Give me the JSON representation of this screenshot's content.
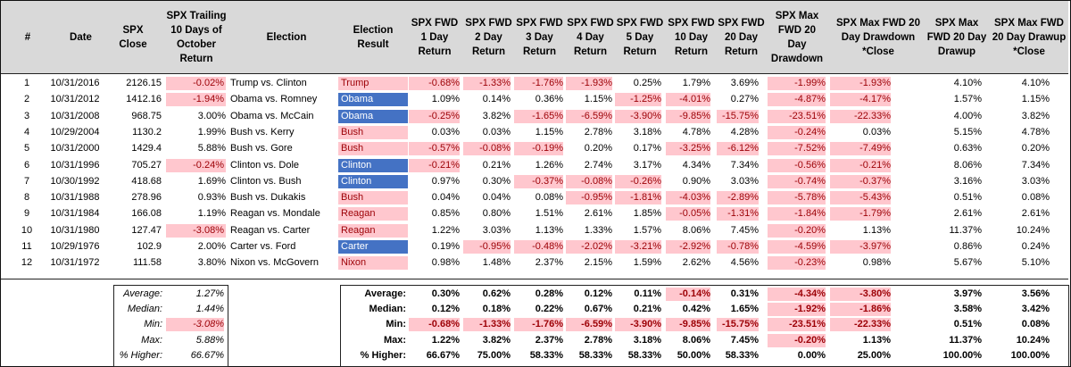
{
  "headers": [
    "#",
    "Date",
    "SPX\nClose",
    "SPX Trailing\n10 Days of\nOctober\nReturn",
    "Election",
    "Election\nResult",
    "SPX FWD\n1 Day\nReturn",
    "SPX FWD\n2 Day\nReturn",
    "SPX FWD\n3 Day\nReturn",
    "SPX FWD\n4 Day\nReturn",
    "SPX FWD\n5 Day\nReturn",
    "SPX FWD\n10 Day\nReturn",
    "SPX FWD\n20 Day\nReturn",
    "SPX Max\nFWD 20 Day\nDrawdown",
    "SPX Max FWD 20\nDay Drawdown\n*Close",
    "SPX Max\nFWD 20 Day\nDrawup",
    "SPX Max FWD\n20 Day Drawup\n*Close"
  ],
  "rows": [
    {
      "num": "1",
      "date": "10/31/2016",
      "close": "2126.15",
      "trailing": "-0.02%",
      "election": "Trump vs. Clinton",
      "result": "Trump",
      "result_color": "red",
      "fwd": [
        "-0.68%",
        "-1.33%",
        "-1.76%",
        "-1.93%",
        "0.25%",
        "1.79%",
        "3.69%",
        "-1.99%",
        "-1.93%",
        "4.10%",
        "4.10%"
      ]
    },
    {
      "num": "2",
      "date": "10/31/2012",
      "close": "1412.16",
      "trailing": "-1.94%",
      "election": "Obama vs. Romney",
      "result": "Obama",
      "result_color": "blue",
      "fwd": [
        "1.09%",
        "0.14%",
        "0.36%",
        "1.15%",
        "-1.25%",
        "-4.01%",
        "0.27%",
        "-4.87%",
        "-4.17%",
        "1.57%",
        "1.15%"
      ]
    },
    {
      "num": "3",
      "date": "10/31/2008",
      "close": "968.75",
      "trailing": "3.00%",
      "election": "Obama vs. McCain",
      "result": "Obama",
      "result_color": "blue",
      "fwd": [
        "-0.25%",
        "3.82%",
        "-1.65%",
        "-6.59%",
        "-3.90%",
        "-9.85%",
        "-15.75%",
        "-23.51%",
        "-22.33%",
        "4.00%",
        "3.82%"
      ]
    },
    {
      "num": "4",
      "date": "10/29/2004",
      "close": "1130.2",
      "trailing": "1.99%",
      "election": "Bush vs. Kerry",
      "result": "Bush",
      "result_color": "red",
      "fwd": [
        "0.03%",
        "0.03%",
        "1.15%",
        "2.78%",
        "3.18%",
        "4.78%",
        "4.28%",
        "-0.24%",
        "0.03%",
        "5.15%",
        "4.78%"
      ]
    },
    {
      "num": "5",
      "date": "10/31/2000",
      "close": "1429.4",
      "trailing": "5.88%",
      "election": "Bush vs. Gore",
      "result": "Bush",
      "result_color": "red",
      "fwd": [
        "-0.57%",
        "-0.08%",
        "-0.19%",
        "0.20%",
        "0.17%",
        "-3.25%",
        "-6.12%",
        "-7.52%",
        "-7.49%",
        "0.63%",
        "0.20%"
      ]
    },
    {
      "num": "6",
      "date": "10/31/1996",
      "close": "705.27",
      "trailing": "-0.24%",
      "election": "Clinton vs. Dole",
      "result": "Clinton",
      "result_color": "blue",
      "fwd": [
        "-0.21%",
        "0.21%",
        "1.26%",
        "2.74%",
        "3.17%",
        "4.34%",
        "7.34%",
        "-0.56%",
        "-0.21%",
        "8.06%",
        "7.34%"
      ]
    },
    {
      "num": "7",
      "date": "10/30/1992",
      "close": "418.68",
      "trailing": "1.69%",
      "election": "Clinton vs. Bush",
      "result": "Clinton",
      "result_color": "blue",
      "fwd": [
        "0.97%",
        "0.30%",
        "-0.37%",
        "-0.08%",
        "-0.26%",
        "0.90%",
        "3.03%",
        "-0.74%",
        "-0.37%",
        "3.16%",
        "3.03%"
      ]
    },
    {
      "num": "8",
      "date": "10/31/1988",
      "close": "278.96",
      "trailing": "0.93%",
      "election": "Bush vs. Dukakis",
      "result": "Bush",
      "result_color": "red",
      "fwd": [
        "0.04%",
        "0.04%",
        "0.08%",
        "-0.95%",
        "-1.81%",
        "-4.03%",
        "-2.89%",
        "-5.78%",
        "-5.43%",
        "0.51%",
        "0.08%"
      ]
    },
    {
      "num": "9",
      "date": "10/31/1984",
      "close": "166.08",
      "trailing": "1.19%",
      "election": "Reagan vs. Mondale",
      "result": "Reagan",
      "result_color": "red",
      "fwd": [
        "0.85%",
        "0.80%",
        "1.51%",
        "2.61%",
        "1.85%",
        "-0.05%",
        "-1.31%",
        "-1.84%",
        "-1.79%",
        "2.61%",
        "2.61%"
      ]
    },
    {
      "num": "10",
      "date": "10/31/1980",
      "close": "127.47",
      "trailing": "-3.08%",
      "election": "Reagan vs. Carter",
      "result": "Reagan",
      "result_color": "red",
      "fwd": [
        "1.22%",
        "3.03%",
        "1.13%",
        "1.33%",
        "1.57%",
        "8.06%",
        "7.45%",
        "-0.20%",
        "1.13%",
        "11.37%",
        "10.24%"
      ]
    },
    {
      "num": "11",
      "date": "10/29/1976",
      "close": "102.9",
      "trailing": "2.00%",
      "election": "Carter vs. Ford",
      "result": "Carter",
      "result_color": "blue",
      "fwd": [
        "0.19%",
        "-0.95%",
        "-0.48%",
        "-2.02%",
        "-3.21%",
        "-2.92%",
        "-0.78%",
        "-4.59%",
        "-3.97%",
        "0.86%",
        "0.24%"
      ]
    },
    {
      "num": "12",
      "date": "10/31/1972",
      "close": "111.58",
      "trailing": "3.80%",
      "election": "Nixon vs. McGovern",
      "result": "Nixon",
      "result_color": "red",
      "fwd": [
        "0.98%",
        "1.48%",
        "2.37%",
        "2.15%",
        "1.59%",
        "2.62%",
        "4.56%",
        "-0.23%",
        "0.98%",
        "5.67%",
        "5.10%"
      ]
    }
  ],
  "stats_left": [
    {
      "label": "Average:",
      "value": "1.27%"
    },
    {
      "label": "Median:",
      "value": "1.44%"
    },
    {
      "label": "Min:",
      "value": "-3.08%"
    },
    {
      "label": "Max:",
      "value": "5.88%"
    },
    {
      "label": "% Higher:",
      "value": "66.67%"
    }
  ],
  "stats_fwd": [
    {
      "label": "Average:",
      "values": [
        "0.30%",
        "0.62%",
        "0.28%",
        "0.12%",
        "0.11%",
        "-0.14%",
        "0.31%",
        "-4.34%",
        "-3.80%",
        "3.97%",
        "3.56%"
      ]
    },
    {
      "label": "Median:",
      "values": [
        "0.12%",
        "0.18%",
        "0.22%",
        "0.67%",
        "0.21%",
        "0.42%",
        "1.65%",
        "-1.92%",
        "-1.86%",
        "3.58%",
        "3.42%"
      ]
    },
    {
      "label": "Min:",
      "values": [
        "-0.68%",
        "-1.33%",
        "-1.76%",
        "-6.59%",
        "-3.90%",
        "-9.85%",
        "-15.75%",
        "-23.51%",
        "-22.33%",
        "0.51%",
        "0.08%"
      ]
    },
    {
      "label": "Max:",
      "values": [
        "1.22%",
        "3.82%",
        "2.37%",
        "2.78%",
        "3.18%",
        "8.06%",
        "7.45%",
        "-0.20%",
        "1.13%",
        "11.37%",
        "10.24%"
      ]
    },
    {
      "label": "% Higher:",
      "values": [
        "66.67%",
        "75.00%",
        "58.33%",
        "58.33%",
        "58.33%",
        "50.00%",
        "58.33%",
        "0.00%",
        "25.00%",
        "100.00%",
        "100.00%"
      ]
    }
  ],
  "colors": {
    "header_bg": "#d9d9d9",
    "negative_fill": "#ffc7ce",
    "negative_text": "#9c0006",
    "blue_fill": "#4472c4"
  }
}
